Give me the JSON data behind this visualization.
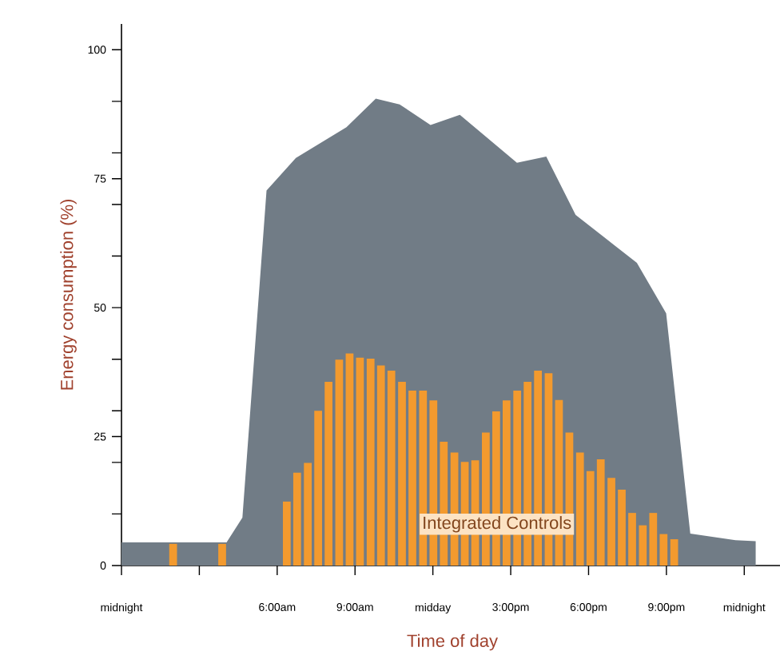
{
  "chart_data": {
    "type": "area",
    "xlabel": "Time of day",
    "ylabel": "Energy consumption (%)",
    "xlim": [
      0,
      25.5
    ],
    "ylim": [
      0,
      105
    ],
    "xticks": [
      {
        "value": 0,
        "label": "midnight"
      },
      {
        "value": 3,
        "label": null
      },
      {
        "value": 6,
        "label": "6:00am"
      },
      {
        "value": 9,
        "label": "9:00am"
      },
      {
        "value": 12,
        "label": "midday"
      },
      {
        "value": 15,
        "label": "3:00pm"
      },
      {
        "value": 18,
        "label": "6:00pm"
      },
      {
        "value": 21,
        "label": "9:00pm"
      },
      {
        "value": 24,
        "label": "midnight"
      }
    ],
    "yticks": [
      0,
      {
        "value": 10,
        "label": null
      },
      {
        "value": 20,
        "label": null
      },
      25,
      {
        "value": 30,
        "label": null
      },
      {
        "value": 40,
        "label": null
      },
      50,
      {
        "value": 60,
        "label": null
      },
      {
        "value": 70,
        "label": null
      },
      75,
      {
        "value": 80,
        "label": null
      },
      {
        "value": 90,
        "label": null
      },
      100
    ],
    "series": [
      {
        "color": "#717c86",
        "x": [
          0,
          4.05,
          4.66,
          5.59,
          6.72,
          8.67,
          9.8,
          10.72,
          11.91,
          13.04,
          15.24,
          16.37,
          17.5,
          19.86,
          20.99,
          21.92,
          23.66,
          24.44
        ],
        "values": [
          4.5,
          4.5,
          9.3,
          72.7,
          79,
          85,
          90.5,
          89.4,
          85.4,
          87.4,
          78.1,
          79.3,
          68,
          58.7,
          48.9,
          6.2,
          4.9,
          4.7
        ]
      },
      {
        "type": "bar",
        "name": "Integrated Controls",
        "color": "#f39a2e",
        "x": [
          1.99,
          3.88,
          6.37,
          6.77,
          7.18,
          7.58,
          7.98,
          8.39,
          8.79,
          9.19,
          9.6,
          10.0,
          10.4,
          10.81,
          11.21,
          11.62,
          12.02,
          12.42,
          12.83,
          13.23,
          13.63,
          14.04,
          14.44,
          14.84,
          15.25,
          15.65,
          16.05,
          16.46,
          16.86,
          17.26,
          17.67,
          18.07,
          18.47,
          18.88,
          19.28,
          19.68,
          20.09,
          20.49,
          20.89,
          21.3
        ],
        "values": [
          4.2,
          4.2,
          12.4,
          18.0,
          19.9,
          30.0,
          35.6,
          39.9,
          41.1,
          40.3,
          40.1,
          38.8,
          37.8,
          35.6,
          33.9,
          33.9,
          32.0,
          24.0,
          21.9,
          20.1,
          20.4,
          25.8,
          29.9,
          32.0,
          33.9,
          35.6,
          37.8,
          37.3,
          32.1,
          25.8,
          21.9,
          18.3,
          20.6,
          17.0,
          14.7,
          10.2,
          7.8,
          10.2,
          6.1,
          5.1
        ]
      }
    ]
  }
}
